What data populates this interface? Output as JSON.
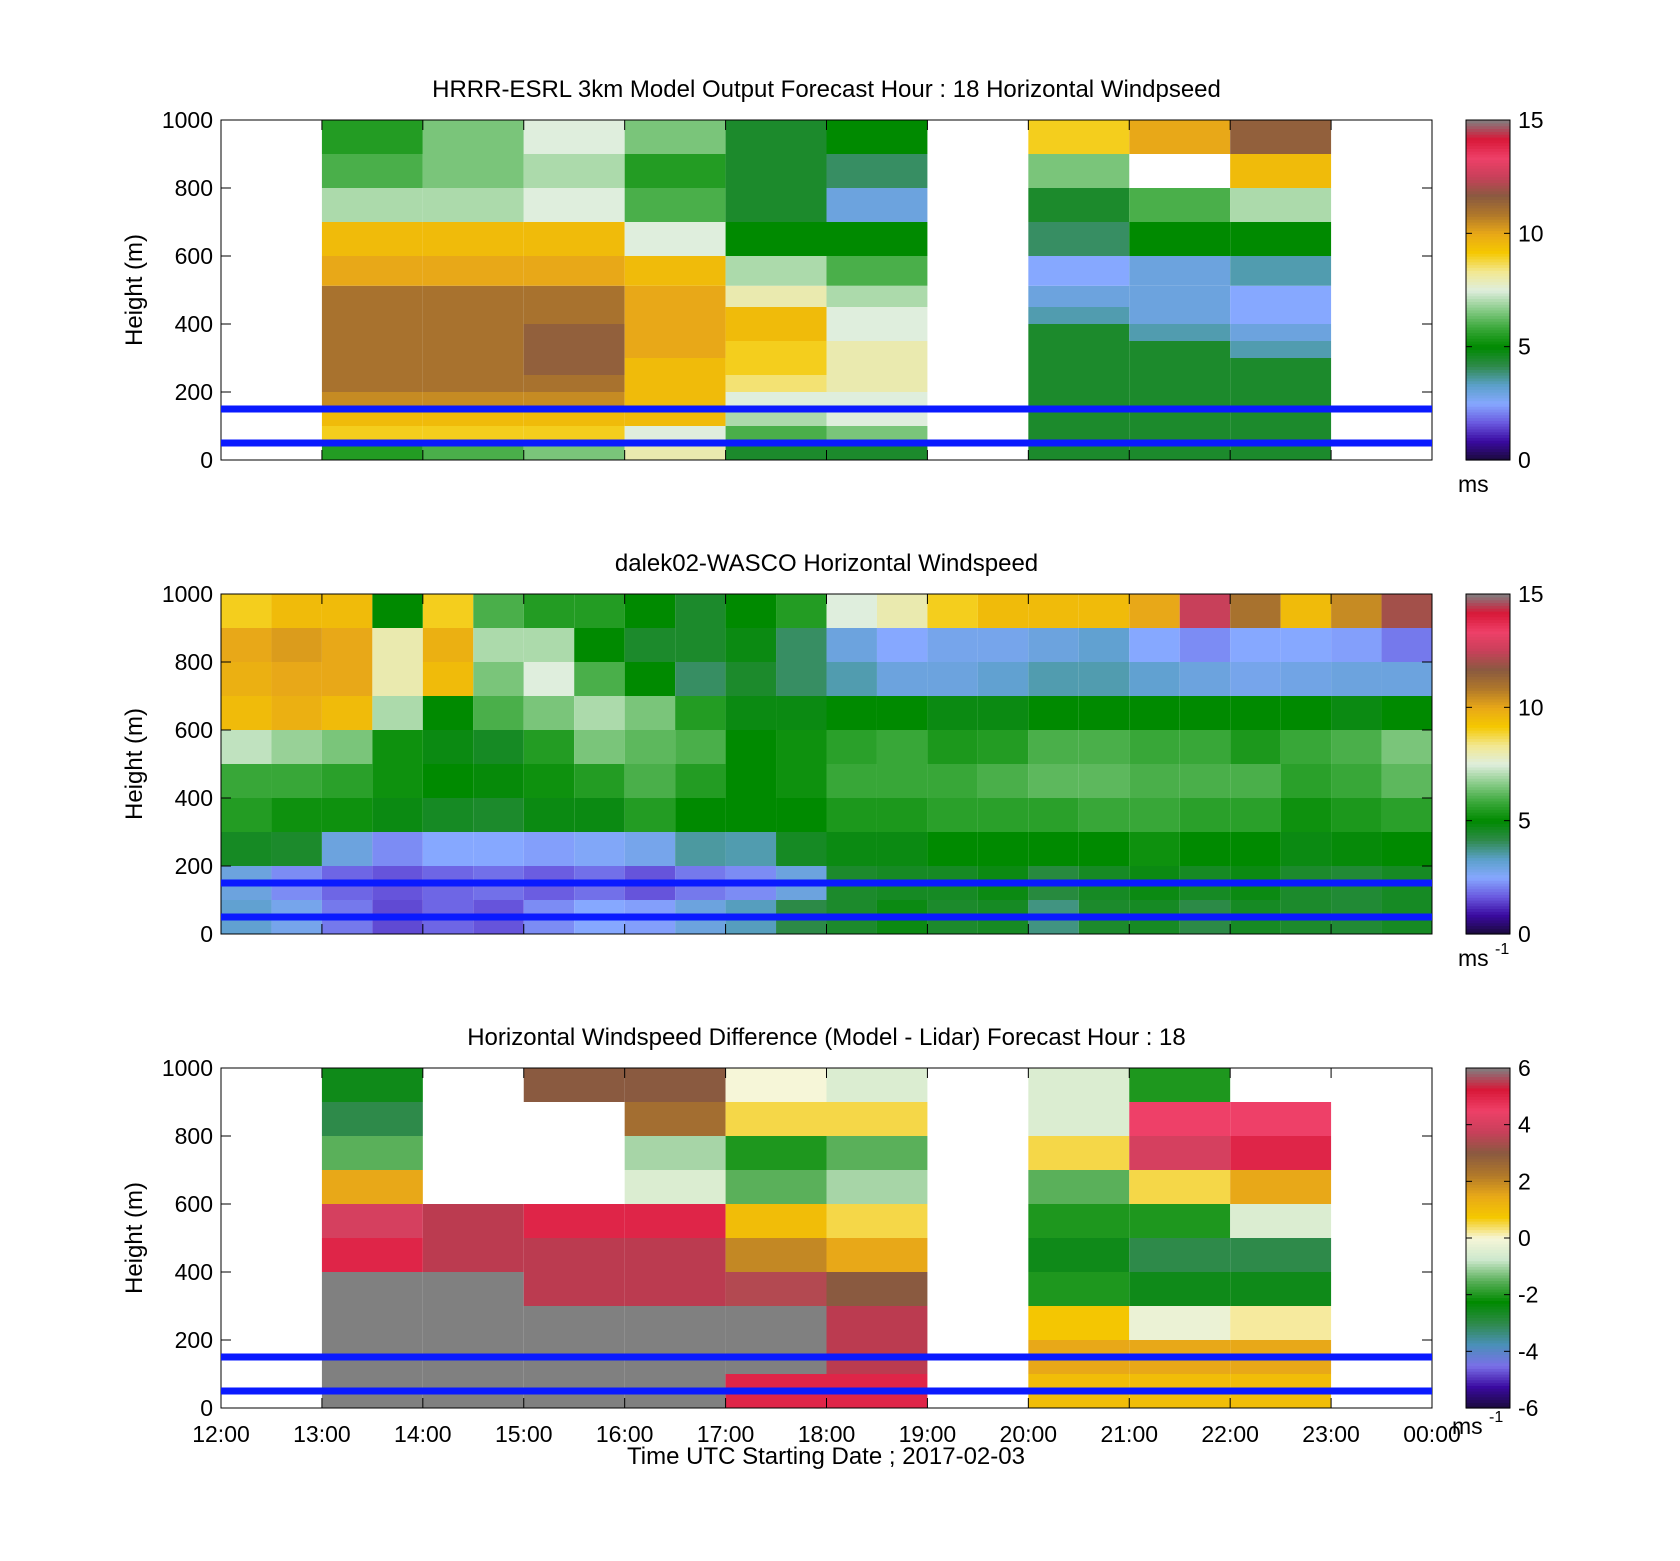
{
  "xlabel": "Time UTC  Starting Date ; 2017-02-03",
  "x_ticks": [
    "12:00",
    "13:00",
    "14:00",
    "15:00",
    "16:00",
    "17:00",
    "18:00",
    "19:00",
    "20:00",
    "21:00",
    "22:00",
    "23:00",
    "00:00"
  ],
  "y_ticks": [
    "0",
    "200",
    "400",
    "600",
    "800",
    "1000"
  ],
  "colors": {
    "ref_line": "#0a1aff",
    "speed_scale": [
      "#1a0a3a",
      "#3a0aa0",
      "#6a5ae0",
      "#86a8ff",
      "#5aa0c8",
      "#2e8a4a",
      "#008a00",
      "#3aa83a",
      "#8acc8a",
      "#dfeedd",
      "#f2e890",
      "#f5c800",
      "#e8a818",
      "#b0782a",
      "#8a5a40",
      "#c8405a",
      "#ee4068",
      "#d81838",
      "#808080"
    ],
    "diff_scale": [
      "#1a0a3a",
      "#3a0aa0",
      "#7a70e8",
      "#4a90b8",
      "#2e8a4a",
      "#008a00",
      "#5ab05a",
      "#cde8cd",
      "#f6f6d8",
      "#f5c800",
      "#e8a818",
      "#b0782a",
      "#8a5a40",
      "#c8405a",
      "#ee4068",
      "#d81838",
      "#808080"
    ]
  },
  "chart_data": [
    {
      "type": "heatmap",
      "title": "HRRR-ESRL 3km Model Output   Forecast Hour : 18 Horizontal Windpseed",
      "ylabel": "Height (m)",
      "xlabel": "",
      "x_range": [
        "12:00",
        "00:00"
      ],
      "ylim": [
        0,
        1000
      ],
      "units": "m",
      "x": [
        "13:00",
        "14:00",
        "15:00",
        "16:00",
        "17:00",
        "18:00",
        "20:00",
        "21:00",
        "22:00"
      ],
      "heights": [
        25,
        75,
        125,
        175,
        225,
        275,
        325,
        375,
        425,
        475,
        550,
        650,
        750,
        850,
        950
      ],
      "values": [
        [
          5.5,
          6.0,
          6.5,
          8.0,
          4.5,
          4.5,
          4.5,
          4.5,
          4.5
        ],
        [
          9.0,
          9.0,
          9.0,
          7.5,
          6.0,
          6.5,
          4.5,
          4.5,
          4.5
        ],
        [
          9.5,
          9.5,
          9.5,
          9.5,
          7.0,
          7.5,
          4.5,
          4.5,
          4.5
        ],
        [
          10.5,
          10.5,
          10.5,
          9.5,
          7.5,
          7.5,
          4.5,
          4.5,
          4.5
        ],
        [
          11.0,
          11.0,
          11.0,
          9.5,
          8.5,
          8.0,
          4.5,
          4.5,
          4.5
        ],
        [
          11.0,
          11.0,
          11.5,
          9.5,
          9.0,
          8.0,
          4.5,
          4.5,
          4.5
        ],
        [
          11.0,
          11.0,
          11.5,
          10.0,
          9.0,
          8.0,
          4.5,
          4.5,
          3.5
        ],
        [
          11.0,
          11.0,
          11.5,
          10.0,
          9.5,
          7.5,
          4.5,
          3.5,
          3.0
        ],
        [
          11.0,
          11.0,
          11.0,
          10.0,
          9.5,
          7.5,
          3.5,
          3.0,
          2.5
        ],
        [
          11.0,
          11.0,
          11.0,
          10.0,
          8.0,
          7.0,
          3.0,
          3.0,
          2.5
        ],
        [
          10.0,
          10.0,
          10.0,
          9.5,
          7.0,
          6.0,
          2.5,
          3.0,
          3.5
        ],
        [
          9.5,
          9.5,
          9.5,
          7.5,
          5.0,
          5.0,
          4.0,
          5.0,
          5.0
        ],
        [
          7.0,
          7.0,
          7.5,
          6.0,
          4.5,
          3.0,
          4.5,
          6.0,
          7.0
        ],
        [
          6.0,
          6.5,
          7.0,
          5.5,
          4.5,
          4.0,
          6.5,
          -99,
          9.5
        ],
        [
          5.5,
          6.5,
          7.5,
          6.5,
          4.5,
          5.0,
          9.0,
          10.0,
          11.5
        ]
      ],
      "reference_lines": [
        50,
        150
      ],
      "colorbar": {
        "min": 0,
        "max": 15,
        "ticks": [
          "0",
          "5",
          "10",
          "15"
        ],
        "unit_label": "ms",
        "unit_exp": ""
      }
    },
    {
      "type": "heatmap",
      "title": "dalek02-WASCO  Horizontal Windspeed",
      "ylabel": "Height (m)",
      "xlabel": "",
      "x_range": [
        "12:00",
        "00:00"
      ],
      "ylim": [
        0,
        1000
      ],
      "units": "m",
      "x": [
        "12:15",
        "12:45",
        "13:15",
        "13:45",
        "14:15",
        "14:45",
        "15:15",
        "15:45",
        "16:15",
        "16:45",
        "17:15",
        "17:45",
        "18:15",
        "18:45",
        "19:15",
        "19:45",
        "20:15",
        "20:45",
        "21:15",
        "21:45",
        "22:15",
        "22:45",
        "23:15",
        "23:45"
      ],
      "heights": [
        50,
        150,
        250,
        350,
        450,
        550,
        650,
        750,
        850,
        950
      ],
      "values": [
        [
          3.2,
          2.8,
          2.0,
          1.5,
          1.8,
          1.6,
          2.2,
          2.5,
          2.4,
          3.0,
          3.4,
          4.2,
          4.5,
          4.8,
          4.5,
          4.6,
          3.8,
          4.5,
          4.6,
          4.2,
          4.6,
          4.5,
          4.4,
          4.6
        ],
        [
          3.0,
          2.2,
          1.8,
          1.6,
          1.8,
          1.9,
          1.7,
          1.9,
          1.6,
          2.0,
          2.2,
          3.0,
          4.5,
          4.6,
          4.6,
          4.8,
          4.3,
          4.6,
          4.8,
          4.6,
          4.8,
          4.5,
          4.4,
          4.6
        ],
        [
          4.6,
          4.5,
          3.0,
          2.2,
          2.5,
          2.5,
          2.4,
          2.6,
          2.8,
          3.6,
          3.5,
          4.6,
          4.8,
          4.8,
          5.0,
          5.0,
          5.0,
          5.0,
          5.2,
          5.0,
          5.0,
          4.8,
          4.9,
          5.0
        ],
        [
          5.5,
          5.2,
          5.2,
          4.8,
          4.6,
          4.5,
          4.8,
          4.8,
          5.5,
          5.0,
          5.0,
          5.0,
          5.4,
          5.4,
          5.6,
          5.6,
          5.6,
          5.8,
          5.8,
          5.6,
          5.6,
          5.2,
          5.4,
          5.6
        ],
        [
          5.8,
          5.8,
          5.6,
          5.2,
          5.0,
          4.9,
          5.2,
          5.5,
          6.0,
          5.5,
          5.0,
          5.2,
          5.8,
          5.8,
          5.8,
          6.0,
          6.2,
          6.2,
          6.0,
          6.0,
          6.0,
          5.6,
          5.8,
          6.2
        ],
        [
          7.2,
          6.8,
          6.5,
          5.2,
          4.8,
          4.6,
          5.5,
          6.5,
          6.2,
          6.0,
          5.0,
          5.2,
          5.6,
          5.8,
          5.4,
          5.5,
          6.0,
          6.0,
          5.8,
          5.8,
          5.4,
          5.8,
          6.0,
          6.5
        ],
        [
          9.5,
          9.8,
          9.5,
          7.0,
          5.0,
          6.0,
          6.5,
          7.0,
          6.5,
          5.5,
          4.8,
          4.8,
          5.0,
          5.0,
          4.8,
          4.8,
          5.0,
          5.0,
          5.0,
          5.0,
          5.0,
          5.0,
          4.8,
          5.0
        ],
        [
          9.8,
          10.0,
          10.0,
          8.0,
          9.5,
          6.5,
          7.5,
          6.0,
          5.0,
          4.0,
          4.5,
          4.0,
          3.5,
          3.0,
          3.0,
          3.2,
          3.5,
          3.5,
          3.2,
          3.0,
          2.8,
          2.9,
          3.0,
          3.0
        ],
        [
          10.0,
          10.2,
          10.0,
          8.0,
          9.8,
          7.0,
          7.0,
          5.0,
          4.5,
          4.5,
          4.8,
          4.0,
          3.0,
          2.5,
          2.8,
          2.8,
          3.0,
          3.2,
          2.5,
          2.2,
          2.5,
          2.5,
          2.4,
          2.0
        ],
        [
          9.0,
          9.5,
          9.5,
          5.0,
          9.0,
          6.0,
          5.5,
          5.5,
          5.0,
          4.5,
          5.0,
          5.5,
          7.5,
          8.0,
          9.0,
          9.5,
          9.5,
          9.5,
          10.0,
          12.5,
          11.0,
          9.5,
          10.5,
          12.0
        ]
      ],
      "reference_lines": [
        50,
        150
      ],
      "colorbar": {
        "min": 0,
        "max": 15,
        "ticks": [
          "0",
          "5",
          "10",
          "15"
        ],
        "unit_label": "ms",
        "unit_exp": "-1"
      }
    },
    {
      "type": "heatmap",
      "title": "Horizontal Windspeed Difference (Model - Lidar) Forecast Hour : 18",
      "ylabel": "Height (m)",
      "xlabel": "Time UTC  Starting Date ; 2017-02-03",
      "x_range": [
        "12:00",
        "00:00"
      ],
      "ylim": [
        0,
        1000
      ],
      "units": "m",
      "x": [
        "13:00",
        "14:00",
        "15:00",
        "16:00",
        "17:00",
        "18:00",
        "20:00",
        "21:00",
        "22:00"
      ],
      "heights": [
        50,
        150,
        250,
        350,
        450,
        550,
        650,
        750,
        850,
        950
      ],
      "values": [
        [
          6.0,
          6.0,
          6.0,
          6.0,
          5.0,
          5.0,
          1.0,
          1.0,
          1.0
        ],
        [
          6.0,
          6.0,
          6.0,
          6.0,
          6.0,
          5.5,
          1.5,
          1.5,
          1.5
        ],
        [
          6.0,
          6.0,
          6.0,
          6.0,
          6.0,
          5.5,
          0.8,
          -0.2,
          0.2
        ],
        [
          6.0,
          6.0,
          5.5,
          5.5,
          3.5,
          3.0,
          -2.0,
          -2.5,
          -2.5
        ],
        [
          5.0,
          5.5,
          5.5,
          5.5,
          2.0,
          1.5,
          -2.5,
          -3.0,
          -3.0
        ],
        [
          4.0,
          5.5,
          5.0,
          5.0,
          1.0,
          0.5,
          -2.0,
          -2.0,
          -0.5
        ],
        [
          1.5,
          -99,
          -99,
          -0.5,
          -1.5,
          -1.0,
          -1.5,
          0.5,
          1.5
        ],
        [
          -1.5,
          -99,
          -99,
          -1.0,
          -2.0,
          -1.5,
          0.5,
          4.0,
          5.0
        ],
        [
          -3.0,
          -99,
          -99,
          2.5,
          0.5,
          0.5,
          -0.5,
          4.5,
          4.5
        ],
        [
          -2.5,
          -99,
          3.0,
          3.0,
          0.0,
          -0.5,
          -0.5,
          -2.0,
          -99
        ]
      ],
      "reference_lines": [
        50,
        150
      ],
      "colorbar": {
        "min": -6,
        "max": 6,
        "ticks": [
          "-6",
          "-4",
          "-2",
          "0",
          "2",
          "4",
          "6"
        ],
        "unit_label": "ms",
        "unit_exp": "-1"
      }
    }
  ]
}
